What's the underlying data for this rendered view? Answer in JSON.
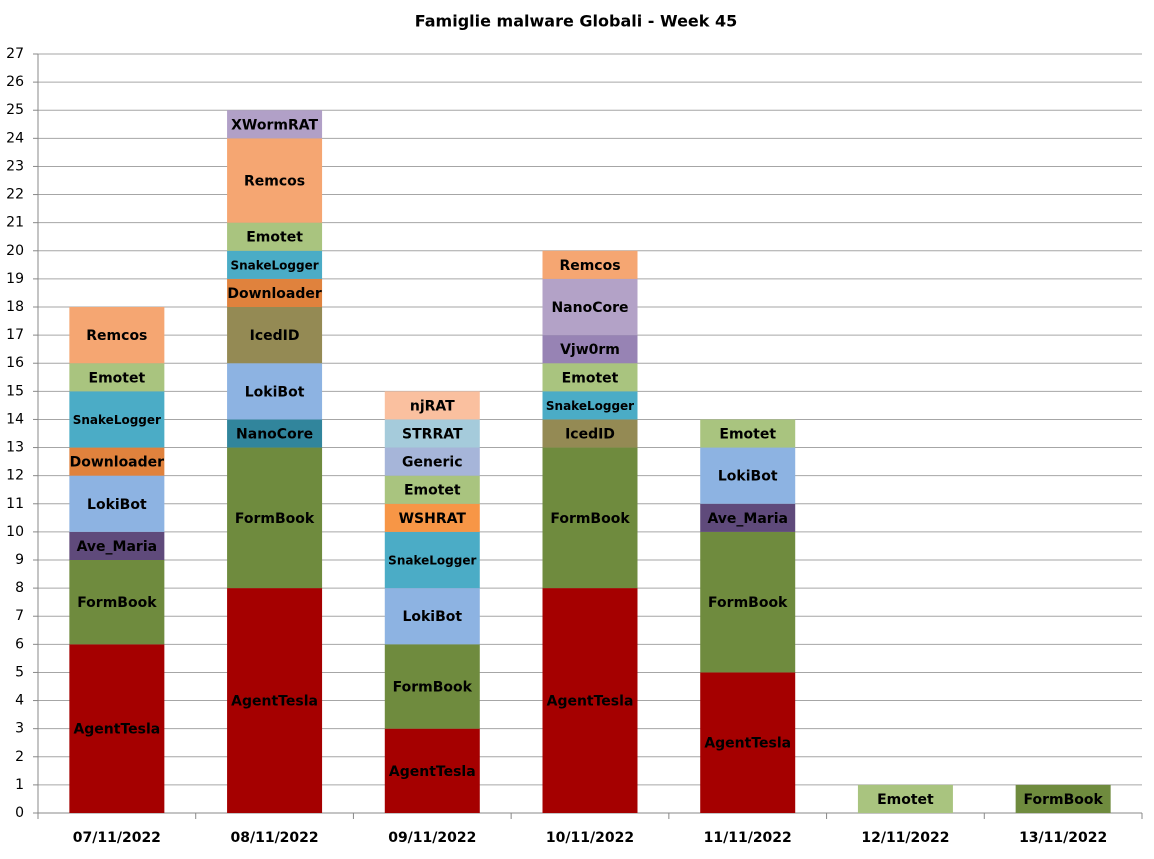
{
  "chart_data": {
    "type": "stacked-labeled-bar",
    "title": "Famiglie  malware Globali - Week 45",
    "ylim": [
      0,
      27
    ],
    "yticks": [
      0,
      1,
      2,
      3,
      4,
      5,
      6,
      7,
      8,
      9,
      10,
      11,
      12,
      13,
      14,
      15,
      16,
      17,
      18,
      19,
      20,
      21,
      22,
      23,
      24,
      25,
      26,
      27
    ],
    "grid": true,
    "bars": [
      {
        "category": "07/11/2022",
        "segments": [
          {
            "name": "AgentTesla",
            "value": 6,
            "color": "#a50000"
          },
          {
            "name": "FormBook",
            "value": 3,
            "color": "#6f8b3e"
          },
          {
            "name": "Ave_Maria",
            "value": 1,
            "color": "#5f4a7b"
          },
          {
            "name": "LokiBot",
            "value": 2,
            "color": "#8db3e2"
          },
          {
            "name": "Downloader",
            "value": 1,
            "color": "#e0823d"
          },
          {
            "name": "SnakeLogger",
            "value": 2,
            "color": "#4bacc6"
          },
          {
            "name": "Emotet",
            "value": 1,
            "color": "#a9c47f"
          },
          {
            "name": "Remcos",
            "value": 2,
            "color": "#f5a672"
          }
        ]
      },
      {
        "category": "08/11/2022",
        "segments": [
          {
            "name": "AgentTesla",
            "value": 8,
            "color": "#a50000"
          },
          {
            "name": "FormBook",
            "value": 5,
            "color": "#6f8b3e"
          },
          {
            "name": "NanoCore",
            "value": 1,
            "color": "#31859c"
          },
          {
            "name": "LokiBot",
            "value": 2,
            "color": "#8db3e2"
          },
          {
            "name": "IcedID",
            "value": 2,
            "color": "#948a54"
          },
          {
            "name": "Downloader",
            "value": 1,
            "color": "#e0823d"
          },
          {
            "name": "SnakeLogger",
            "value": 1,
            "color": "#4bacc6"
          },
          {
            "name": "Emotet",
            "value": 1,
            "color": "#a9c47f"
          },
          {
            "name": "Remcos",
            "value": 3,
            "color": "#f5a672"
          },
          {
            "name": "XWormRAT",
            "value": 1,
            "color": "#b1a0c7"
          }
        ]
      },
      {
        "category": "09/11/2022",
        "segments": [
          {
            "name": "AgentTesla",
            "value": 3,
            "color": "#a50000"
          },
          {
            "name": "FormBook",
            "value": 3,
            "color": "#6f8b3e"
          },
          {
            "name": "LokiBot",
            "value": 2,
            "color": "#8db3e2"
          },
          {
            "name": "SnakeLogger",
            "value": 2,
            "color": "#4bacc6"
          },
          {
            "name": "WSHRAT",
            "value": 1,
            "color": "#f79646"
          },
          {
            "name": "Emotet",
            "value": 1,
            "color": "#a9c47f"
          },
          {
            "name": "Generic",
            "value": 1,
            "color": "#a6b5d9"
          },
          {
            "name": "STRRAT",
            "value": 1,
            "color": "#a5cbdb"
          },
          {
            "name": "njRAT",
            "value": 1,
            "color": "#fac09f"
          }
        ]
      },
      {
        "category": "10/11/2022",
        "segments": [
          {
            "name": "AgentTesla",
            "value": 8,
            "color": "#a50000"
          },
          {
            "name": "FormBook",
            "value": 5,
            "color": "#6f8b3e"
          },
          {
            "name": "IcedID",
            "value": 1,
            "color": "#948a54"
          },
          {
            "name": "SnakeLogger",
            "value": 1,
            "color": "#4bacc6"
          },
          {
            "name": "Emotet",
            "value": 1,
            "color": "#a9c47f"
          },
          {
            "name": "Vjw0rm",
            "value": 1,
            "color": "#9783b4"
          },
          {
            "name": "NanoCore",
            "value": 2,
            "color": "#b3a2c7"
          },
          {
            "name": "Remcos",
            "value": 1,
            "color": "#f5a672"
          }
        ]
      },
      {
        "category": "11/11/2022",
        "segments": [
          {
            "name": "AgentTesla",
            "value": 5,
            "color": "#a50000"
          },
          {
            "name": "FormBook",
            "value": 5,
            "color": "#6f8b3e"
          },
          {
            "name": "Ave_Maria",
            "value": 1,
            "color": "#5f4a7b"
          },
          {
            "name": "LokiBot",
            "value": 2,
            "color": "#8db3e2"
          },
          {
            "name": "Emotet",
            "value": 1,
            "color": "#a9c47f"
          }
        ]
      },
      {
        "category": "12/11/2022",
        "segments": [
          {
            "name": "Emotet",
            "value": 1,
            "color": "#a9c47f"
          }
        ]
      },
      {
        "category": "13/11/2022",
        "segments": [
          {
            "name": "FormBook",
            "value": 1,
            "color": "#6f8b3e"
          }
        ]
      }
    ]
  }
}
